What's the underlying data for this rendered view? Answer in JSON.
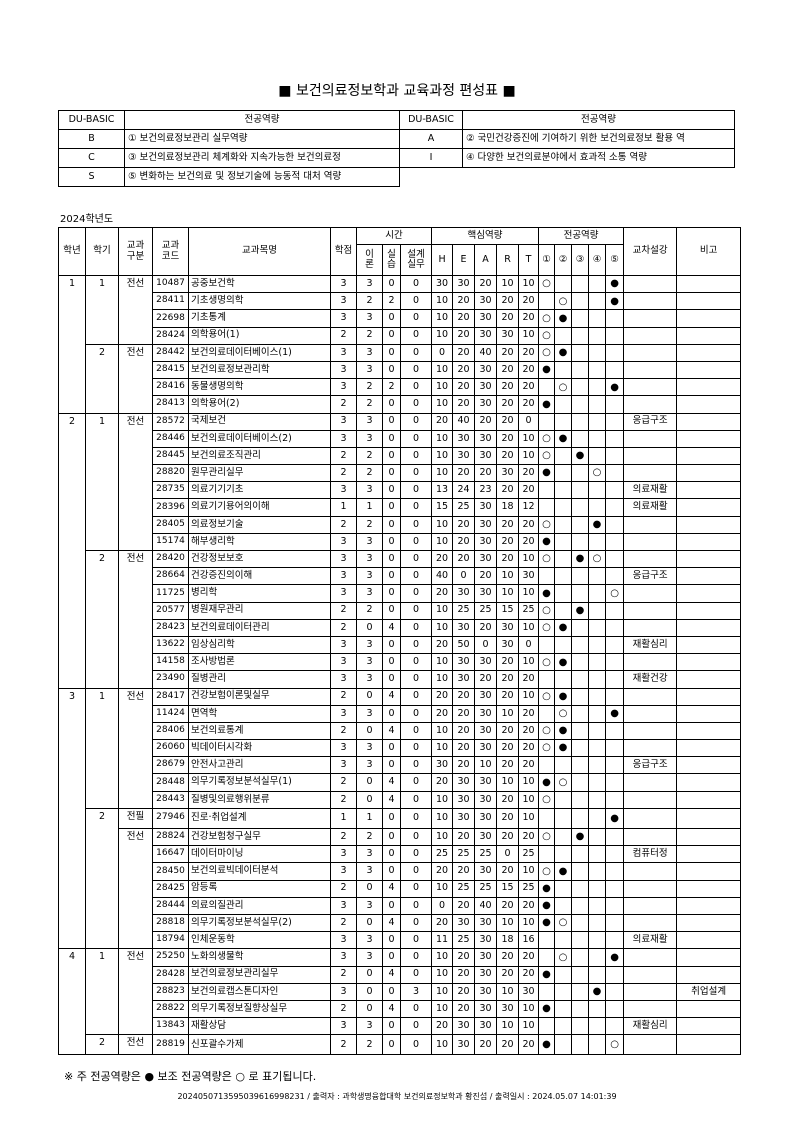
{
  "title": "■ 보건의료정보학과 교육과정 편성표 ■",
  "competency_table": {
    "headers": [
      "DU-BASIC",
      "전공역량",
      "DU-BASIC",
      "전공역량"
    ],
    "rows": [
      {
        "code1": "B",
        "comp1": "① 보건의료정보관리 실무역량",
        "code2": "A",
        "comp2": "② 국민건강증진에 기여하기 위한 보건의료정보 활용 역"
      },
      {
        "code1": "C",
        "comp1": "③ 보건의료정보관리 체계화와 지속가능한 보건의료정",
        "code2": "I",
        "comp2": "④ 다양한 보건의료분야에서 효과적 소통 역량"
      },
      {
        "code1": "S",
        "comp1": "⑤ 변화하는 보건의료 및 정보기술에 능동적 대처 역량"
      }
    ]
  },
  "academic_year": "2024학년도",
  "table_headers": {
    "grade": "학년",
    "semester": "학기",
    "type": "교과\n구분",
    "code": "교과\n코드",
    "name": "교과목명",
    "credits": "학점",
    "time": "시간",
    "theory": "이\n론",
    "practice": "실\n습",
    "design": "설계\n실무",
    "core": "핵심역량",
    "core_items": [
      "H",
      "E",
      "A",
      "R",
      "T"
    ],
    "major": "전공역량",
    "major_items": [
      "①",
      "②",
      "③",
      "④",
      "⑤"
    ],
    "cross": "교차설강",
    "remark": "비고"
  },
  "mark_symbols": {
    "main": "●",
    "sub": "○"
  },
  "courses": [
    {
      "grade": "1",
      "sem": "1",
      "type": "전선",
      "code": "10487",
      "name": "공중보건학",
      "cr": "3",
      "th": "3",
      "pr": "0",
      "de": "0",
      "core": [
        "30",
        "30",
        "20",
        "10",
        "10"
      ],
      "marks": [
        "sub",
        "",
        "",
        "",
        "main"
      ],
      "cross": "",
      "remark": ""
    },
    {
      "grade": "1",
      "sem": "1",
      "type": "전선",
      "code": "28411",
      "name": "기초생명의학",
      "cr": "3",
      "th": "2",
      "pr": "2",
      "de": "0",
      "core": [
        "10",
        "20",
        "30",
        "20",
        "20"
      ],
      "marks": [
        "",
        "sub",
        "",
        "",
        "main"
      ],
      "cross": "",
      "remark": ""
    },
    {
      "grade": "1",
      "sem": "1",
      "type": "전선",
      "code": "22698",
      "name": "기초통계",
      "cr": "3",
      "th": "3",
      "pr": "0",
      "de": "0",
      "core": [
        "10",
        "20",
        "30",
        "20",
        "20"
      ],
      "marks": [
        "sub",
        "main",
        "",
        "",
        ""
      ],
      "cross": "",
      "remark": ""
    },
    {
      "grade": "1",
      "sem": "1",
      "type": "전선",
      "code": "28424",
      "name": "의학용어(1)",
      "cr": "2",
      "th": "2",
      "pr": "0",
      "de": "0",
      "core": [
        "10",
        "20",
        "30",
        "30",
        "10"
      ],
      "marks": [
        "sub",
        "",
        "",
        "",
        ""
      ],
      "cross": "",
      "remark": ""
    },
    {
      "grade": "1",
      "sem": "2",
      "type": "전선",
      "code": "28442",
      "name": "보건의료데이터베이스(1)",
      "cr": "3",
      "th": "3",
      "pr": "0",
      "de": "0",
      "core": [
        "0",
        "20",
        "40",
        "20",
        "20"
      ],
      "marks": [
        "sub",
        "main",
        "",
        "",
        ""
      ],
      "cross": "",
      "remark": ""
    },
    {
      "grade": "1",
      "sem": "2",
      "type": "전선",
      "code": "28415",
      "name": "보건의료정보관리학",
      "cr": "3",
      "th": "3",
      "pr": "0",
      "de": "0",
      "core": [
        "10",
        "20",
        "30",
        "20",
        "20"
      ],
      "marks": [
        "main",
        "",
        "",
        "",
        ""
      ],
      "cross": "",
      "remark": ""
    },
    {
      "grade": "1",
      "sem": "2",
      "type": "전선",
      "code": "28416",
      "name": "동물생명의학",
      "cr": "3",
      "th": "2",
      "pr": "2",
      "de": "0",
      "core": [
        "10",
        "20",
        "30",
        "20",
        "20"
      ],
      "marks": [
        "",
        "sub",
        "",
        "",
        "main"
      ],
      "cross": "",
      "remark": ""
    },
    {
      "grade": "1",
      "sem": "2",
      "type": "전선",
      "code": "28413",
      "name": "의학용어(2)",
      "cr": "2",
      "th": "2",
      "pr": "0",
      "de": "0",
      "core": [
        "10",
        "20",
        "30",
        "20",
        "20"
      ],
      "marks": [
        "main",
        "",
        "",
        "",
        ""
      ],
      "cross": "",
      "remark": ""
    },
    {
      "grade": "2",
      "sem": "1",
      "type": "전선",
      "code": "28572",
      "name": "국제보건",
      "cr": "3",
      "th": "3",
      "pr": "0",
      "de": "0",
      "core": [
        "20",
        "40",
        "20",
        "20",
        "0"
      ],
      "marks": [
        "",
        "",
        "",
        "",
        ""
      ],
      "cross": "응급구조",
      "remark": ""
    },
    {
      "grade": "2",
      "sem": "1",
      "type": "전선",
      "code": "28446",
      "name": "보건의료데이터베이스(2)",
      "cr": "3",
      "th": "3",
      "pr": "0",
      "de": "0",
      "core": [
        "10",
        "30",
        "30",
        "20",
        "10"
      ],
      "marks": [
        "sub",
        "main",
        "",
        "",
        ""
      ],
      "cross": "",
      "remark": ""
    },
    {
      "grade": "2",
      "sem": "1",
      "type": "전선",
      "code": "28445",
      "name": "보건의료조직관리",
      "cr": "2",
      "th": "2",
      "pr": "0",
      "de": "0",
      "core": [
        "10",
        "30",
        "30",
        "20",
        "10"
      ],
      "marks": [
        "sub",
        "",
        "main",
        "",
        ""
      ],
      "cross": "",
      "remark": ""
    },
    {
      "grade": "2",
      "sem": "1",
      "type": "전선",
      "code": "28820",
      "name": "원무관리실무",
      "cr": "2",
      "th": "2",
      "pr": "0",
      "de": "0",
      "core": [
        "10",
        "20",
        "20",
        "30",
        "20"
      ],
      "marks": [
        "main",
        "",
        "",
        "sub",
        ""
      ],
      "cross": "",
      "remark": ""
    },
    {
      "grade": "2",
      "sem": "1",
      "type": "전선",
      "code": "28735",
      "name": "의료기기기초",
      "cr": "3",
      "th": "3",
      "pr": "0",
      "de": "0",
      "core": [
        "13",
        "24",
        "23",
        "20",
        "20"
      ],
      "marks": [
        "",
        "",
        "",
        "",
        ""
      ],
      "cross": "의료재활",
      "remark": ""
    },
    {
      "grade": "2",
      "sem": "1",
      "type": "전선",
      "code": "28396",
      "name": "의료기기용어의이해",
      "cr": "1",
      "th": "1",
      "pr": "0",
      "de": "0",
      "core": [
        "15",
        "25",
        "30",
        "18",
        "12"
      ],
      "marks": [
        "",
        "",
        "",
        "",
        ""
      ],
      "cross": "의료재활",
      "remark": ""
    },
    {
      "grade": "2",
      "sem": "1",
      "type": "전선",
      "code": "28405",
      "name": "의료정보기술",
      "cr": "2",
      "th": "2",
      "pr": "0",
      "de": "0",
      "core": [
        "10",
        "20",
        "30",
        "20",
        "20"
      ],
      "marks": [
        "sub",
        "",
        "",
        "main",
        ""
      ],
      "cross": "",
      "remark": ""
    },
    {
      "grade": "2",
      "sem": "1",
      "type": "전선",
      "code": "15174",
      "name": "해부생리학",
      "cr": "3",
      "th": "3",
      "pr": "0",
      "de": "0",
      "core": [
        "10",
        "20",
        "30",
        "20",
        "20"
      ],
      "marks": [
        "main",
        "",
        "",
        "",
        ""
      ],
      "cross": "",
      "remark": ""
    },
    {
      "grade": "2",
      "sem": "2",
      "type": "전선",
      "code": "28420",
      "name": "건강정보보호",
      "cr": "3",
      "th": "3",
      "pr": "0",
      "de": "0",
      "core": [
        "20",
        "20",
        "30",
        "20",
        "10"
      ],
      "marks": [
        "sub",
        "",
        "main",
        "sub",
        ""
      ],
      "cross": "",
      "remark": ""
    },
    {
      "grade": "2",
      "sem": "2",
      "type": "전선",
      "code": "28664",
      "name": "건강증진의이해",
      "cr": "3",
      "th": "3",
      "pr": "0",
      "de": "0",
      "core": [
        "40",
        "0",
        "20",
        "10",
        "30"
      ],
      "marks": [
        "",
        "",
        "",
        "",
        ""
      ],
      "cross": "응급구조",
      "remark": ""
    },
    {
      "grade": "2",
      "sem": "2",
      "type": "전선",
      "code": "11725",
      "name": "병리학",
      "cr": "3",
      "th": "3",
      "pr": "0",
      "de": "0",
      "core": [
        "20",
        "30",
        "30",
        "10",
        "10"
      ],
      "marks": [
        "main",
        "",
        "",
        "",
        "sub"
      ],
      "cross": "",
      "remark": ""
    },
    {
      "grade": "2",
      "sem": "2",
      "type": "전선",
      "code": "20577",
      "name": "병원재무관리",
      "cr": "2",
      "th": "2",
      "pr": "0",
      "de": "0",
      "core": [
        "10",
        "25",
        "25",
        "15",
        "25"
      ],
      "marks": [
        "sub",
        "",
        "main",
        "",
        ""
      ],
      "cross": "",
      "remark": ""
    },
    {
      "grade": "2",
      "sem": "2",
      "type": "전선",
      "code": "28423",
      "name": "보건의료데이터관리",
      "cr": "2",
      "th": "0",
      "pr": "4",
      "de": "0",
      "core": [
        "10",
        "30",
        "20",
        "30",
        "10"
      ],
      "marks": [
        "sub",
        "main",
        "",
        "",
        ""
      ],
      "cross": "",
      "remark": ""
    },
    {
      "grade": "2",
      "sem": "2",
      "type": "전선",
      "code": "13622",
      "name": "임상심리학",
      "cr": "3",
      "th": "3",
      "pr": "0",
      "de": "0",
      "core": [
        "20",
        "50",
        "0",
        "30",
        "0"
      ],
      "marks": [
        "",
        "",
        "",
        "",
        ""
      ],
      "cross": "재활심리",
      "remark": ""
    },
    {
      "grade": "2",
      "sem": "2",
      "type": "전선",
      "code": "14158",
      "name": "조사방법론",
      "cr": "3",
      "th": "3",
      "pr": "0",
      "de": "0",
      "core": [
        "10",
        "30",
        "30",
        "20",
        "10"
      ],
      "marks": [
        "sub",
        "main",
        "",
        "",
        ""
      ],
      "cross": "",
      "remark": ""
    },
    {
      "grade": "2",
      "sem": "2",
      "type": "전선",
      "code": "23490",
      "name": "질병관리",
      "cr": "3",
      "th": "3",
      "pr": "0",
      "de": "0",
      "core": [
        "10",
        "30",
        "20",
        "20",
        "20"
      ],
      "marks": [
        "",
        "",
        "",
        "",
        ""
      ],
      "cross": "재활건강",
      "remark": ""
    },
    {
      "grade": "3",
      "sem": "1",
      "type": "전선",
      "code": "28417",
      "name": "건강보험이론및실무",
      "cr": "2",
      "th": "0",
      "pr": "4",
      "de": "0",
      "core": [
        "20",
        "20",
        "30",
        "20",
        "10"
      ],
      "marks": [
        "sub",
        "main",
        "",
        "",
        ""
      ],
      "cross": "",
      "remark": ""
    },
    {
      "grade": "3",
      "sem": "1",
      "type": "전선",
      "code": "11424",
      "name": "면역학",
      "cr": "3",
      "th": "3",
      "pr": "0",
      "de": "0",
      "core": [
        "20",
        "20",
        "30",
        "10",
        "20"
      ],
      "marks": [
        "",
        "sub",
        "",
        "",
        "main"
      ],
      "cross": "",
      "remark": ""
    },
    {
      "grade": "3",
      "sem": "1",
      "type": "전선",
      "code": "28406",
      "name": "보건의료통계",
      "cr": "2",
      "th": "0",
      "pr": "4",
      "de": "0",
      "core": [
        "10",
        "20",
        "30",
        "20",
        "20"
      ],
      "marks": [
        "sub",
        "main",
        "",
        "",
        ""
      ],
      "cross": "",
      "remark": ""
    },
    {
      "grade": "3",
      "sem": "1",
      "type": "전선",
      "code": "26060",
      "name": "빅데이터시각화",
      "cr": "3",
      "th": "3",
      "pr": "0",
      "de": "0",
      "core": [
        "10",
        "20",
        "30",
        "20",
        "20"
      ],
      "marks": [
        "sub",
        "main",
        "",
        "",
        ""
      ],
      "cross": "",
      "remark": ""
    },
    {
      "grade": "3",
      "sem": "1",
      "type": "전선",
      "code": "28679",
      "name": "안전사고관리",
      "cr": "3",
      "th": "3",
      "pr": "0",
      "de": "0",
      "core": [
        "30",
        "20",
        "10",
        "20",
        "20"
      ],
      "marks": [
        "",
        "",
        "",
        "",
        ""
      ],
      "cross": "응급구조",
      "remark": ""
    },
    {
      "grade": "3",
      "sem": "1",
      "type": "전선",
      "code": "28448",
      "name": "의무기록정보분석실무(1)",
      "cr": "2",
      "th": "0",
      "pr": "4",
      "de": "0",
      "core": [
        "20",
        "30",
        "30",
        "10",
        "10"
      ],
      "marks": [
        "main",
        "sub",
        "",
        "",
        ""
      ],
      "cross": "",
      "remark": ""
    },
    {
      "grade": "3",
      "sem": "1",
      "type": "전선",
      "code": "28443",
      "name": "질병및의료행위분류",
      "cr": "2",
      "th": "0",
      "pr": "4",
      "de": "0",
      "core": [
        "10",
        "30",
        "30",
        "20",
        "10"
      ],
      "marks": [
        "sub",
        "",
        "",
        "",
        ""
      ],
      "cross": "",
      "remark": ""
    },
    {
      "grade": "3",
      "sem": "2",
      "type": "전필",
      "code": "27946",
      "name": "진로·취업설계",
      "cr": "1",
      "th": "1",
      "pr": "0",
      "de": "0",
      "core": [
        "10",
        "30",
        "30",
        "20",
        "10"
      ],
      "marks": [
        "",
        "",
        "",
        "",
        "main"
      ],
      "cross": "",
      "remark": ""
    },
    {
      "grade": "3",
      "sem": "2",
      "type": "전선",
      "code": "28824",
      "name": "건강보험청구실무",
      "cr": "2",
      "th": "2",
      "pr": "0",
      "de": "0",
      "core": [
        "10",
        "20",
        "30",
        "20",
        "20"
      ],
      "marks": [
        "sub",
        "",
        "main",
        "",
        ""
      ],
      "cross": "",
      "remark": ""
    },
    {
      "grade": "3",
      "sem": "2",
      "type": "전선",
      "code": "16647",
      "name": "데이터마이닝",
      "cr": "3",
      "th": "3",
      "pr": "0",
      "de": "0",
      "core": [
        "25",
        "25",
        "25",
        "0",
        "25"
      ],
      "marks": [
        "",
        "",
        "",
        "",
        ""
      ],
      "cross": "컴퓨터정",
      "remark": ""
    },
    {
      "grade": "3",
      "sem": "2",
      "type": "전선",
      "code": "28450",
      "name": "보건의료빅데이터분석",
      "cr": "3",
      "th": "3",
      "pr": "0",
      "de": "0",
      "core": [
        "20",
        "20",
        "30",
        "20",
        "10"
      ],
      "marks": [
        "sub",
        "main",
        "",
        "",
        ""
      ],
      "cross": "",
      "remark": ""
    },
    {
      "grade": "3",
      "sem": "2",
      "type": "전선",
      "code": "28425",
      "name": "암등록",
      "cr": "2",
      "th": "0",
      "pr": "4",
      "de": "0",
      "core": [
        "10",
        "25",
        "25",
        "15",
        "25"
      ],
      "marks": [
        "main",
        "",
        "",
        "",
        ""
      ],
      "cross": "",
      "remark": ""
    },
    {
      "grade": "3",
      "sem": "2",
      "type": "전선",
      "code": "28444",
      "name": "의료의질관리",
      "cr": "3",
      "th": "3",
      "pr": "0",
      "de": "0",
      "core": [
        "0",
        "20",
        "40",
        "20",
        "20"
      ],
      "marks": [
        "main",
        "",
        "",
        "",
        ""
      ],
      "cross": "",
      "remark": ""
    },
    {
      "grade": "3",
      "sem": "2",
      "type": "전선",
      "code": "28818",
      "name": "의무기록정보분석실무(2)",
      "cr": "2",
      "th": "0",
      "pr": "4",
      "de": "0",
      "core": [
        "20",
        "30",
        "30",
        "10",
        "10"
      ],
      "marks": [
        "main",
        "sub",
        "",
        "",
        ""
      ],
      "cross": "",
      "remark": ""
    },
    {
      "grade": "3",
      "sem": "2",
      "type": "전선",
      "code": "18794",
      "name": "인체운동학",
      "cr": "3",
      "th": "3",
      "pr": "0",
      "de": "0",
      "core": [
        "11",
        "25",
        "30",
        "18",
        "16"
      ],
      "marks": [
        "",
        "",
        "",
        "",
        ""
      ],
      "cross": "의료재활",
      "remark": ""
    },
    {
      "grade": "4",
      "sem": "1",
      "type": "전선",
      "code": "25250",
      "name": "노화의생물학",
      "cr": "3",
      "th": "3",
      "pr": "0",
      "de": "0",
      "core": [
        "10",
        "20",
        "30",
        "20",
        "20"
      ],
      "marks": [
        "",
        "sub",
        "",
        "",
        "main"
      ],
      "cross": "",
      "remark": ""
    },
    {
      "grade": "4",
      "sem": "1",
      "type": "전선",
      "code": "28428",
      "name": "보건의료정보관리실무",
      "cr": "2",
      "th": "0",
      "pr": "4",
      "de": "0",
      "core": [
        "10",
        "20",
        "30",
        "20",
        "20"
      ],
      "marks": [
        "main",
        "",
        "",
        "",
        ""
      ],
      "cross": "",
      "remark": ""
    },
    {
      "grade": "4",
      "sem": "1",
      "type": "전선",
      "code": "28823",
      "name": "보건의료캡스톤디자인",
      "cr": "3",
      "th": "0",
      "pr": "0",
      "de": "3",
      "core": [
        "10",
        "20",
        "30",
        "10",
        "30"
      ],
      "marks": [
        "",
        "",
        "",
        "main",
        ""
      ],
      "cross": "",
      "remark": "취업설계"
    },
    {
      "grade": "4",
      "sem": "1",
      "type": "전선",
      "code": "28822",
      "name": "의무기록정보질향상실무",
      "cr": "2",
      "th": "0",
      "pr": "4",
      "de": "0",
      "core": [
        "10",
        "20",
        "30",
        "30",
        "10"
      ],
      "marks": [
        "main",
        "",
        "",
        "",
        ""
      ],
      "cross": "",
      "remark": ""
    },
    {
      "grade": "4",
      "sem": "1",
      "type": "전선",
      "code": "13843",
      "name": "재활상담",
      "cr": "3",
      "th": "3",
      "pr": "0",
      "de": "0",
      "core": [
        "20",
        "30",
        "30",
        "10",
        "10"
      ],
      "marks": [
        "",
        "",
        "",
        "",
        ""
      ],
      "cross": "재활심리",
      "remark": ""
    },
    {
      "grade": "4",
      "sem": "2",
      "type": "전선",
      "code": "28819",
      "name": "신포괄수가제",
      "cr": "2",
      "th": "2",
      "pr": "0",
      "de": "0",
      "core": [
        "10",
        "30",
        "20",
        "20",
        "20"
      ],
      "marks": [
        "main",
        "",
        "",
        "",
        "sub"
      ],
      "cross": "",
      "remark": ""
    }
  ],
  "legend_note": {
    "prefix": "※ 주 전공역량은",
    "mid": "보조 전공역량은",
    "suffix": "로 표기됩니다."
  },
  "footer": "2024050713595039616998231 / 출력자 : 과학생명융합대학 보건의료정보학과 황진섭 / 출력일시 : 2024.05.07 14:01:39"
}
